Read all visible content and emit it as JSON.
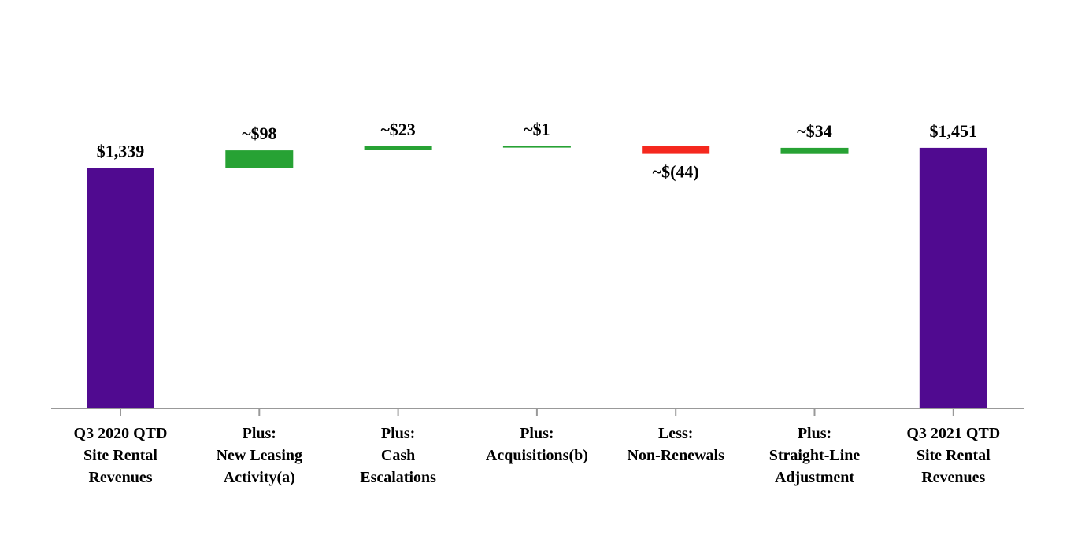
{
  "chart_data": {
    "type": "bar",
    "subtype": "waterfall",
    "title": "",
    "xlabel": "",
    "ylabel": "",
    "ylim": [
      0,
      1451
    ],
    "grid": false,
    "legend": "none",
    "colors": {
      "total": "#500A90",
      "increase": "#27A234",
      "decrease": "#F5281E",
      "axis": "#999999"
    },
    "categories": [
      [
        "Q3 2020 QTD",
        "Site Rental",
        "Revenues"
      ],
      [
        "Plus:",
        "New Leasing",
        "Activity(a)"
      ],
      [
        "Plus:",
        "Cash",
        "Escalations"
      ],
      [
        "Plus:",
        "Acquisitions(b)"
      ],
      [
        "Less:",
        "Non-Renewals"
      ],
      [
        "Plus:",
        "Straight-Line",
        "Adjustment"
      ],
      [
        "Q3 2021 QTD",
        "Site Rental",
        "Revenues"
      ]
    ],
    "bars": [
      {
        "kind": "total",
        "value": 1339,
        "label": "$1,339"
      },
      {
        "kind": "increase",
        "value": 98,
        "label": "~$98"
      },
      {
        "kind": "increase",
        "value": 23,
        "label": "~$23"
      },
      {
        "kind": "increase",
        "value": 1,
        "label": "~$1"
      },
      {
        "kind": "decrease",
        "value": -44,
        "label": "~$(44)"
      },
      {
        "kind": "increase",
        "value": 34,
        "label": "~$34"
      },
      {
        "kind": "total",
        "value": 1451,
        "label": "$1,451"
      }
    ]
  }
}
